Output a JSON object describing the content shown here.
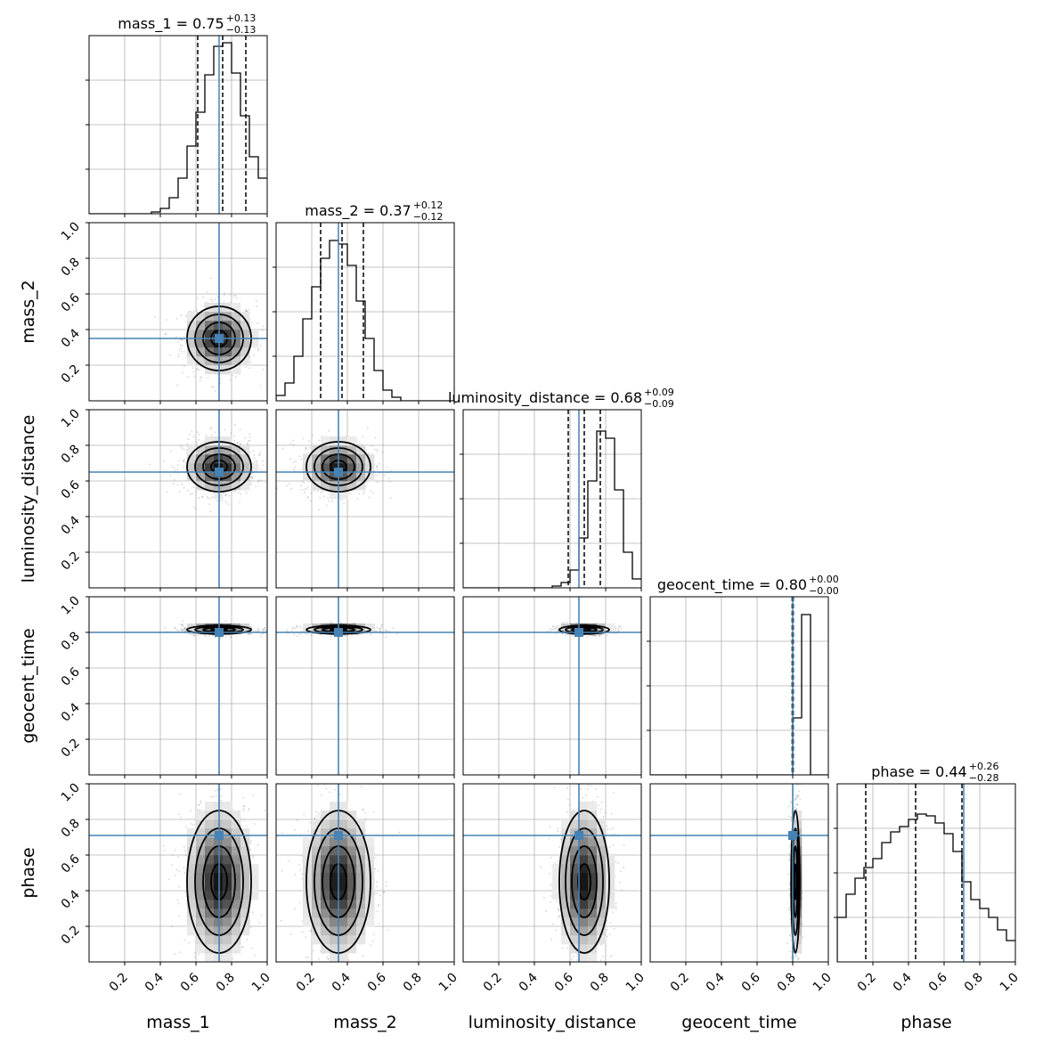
{
  "chart_data": {
    "type": "corner",
    "parameters": [
      "mass_1",
      "mass_2",
      "luminosity_distance",
      "geocent_time",
      "phase"
    ],
    "axis_range": [
      0,
      1
    ],
    "tick_labels": [
      "0.2",
      "0.4",
      "0.6",
      "0.8",
      "1.0"
    ],
    "truth_color": "#4682b4",
    "truths": {
      "mass_1": 0.73,
      "mass_2": 0.35,
      "luminosity_distance": 0.65,
      "geocent_time": 0.8,
      "phase": 0.71
    },
    "marginal_titles": [
      {
        "param": "mass_1",
        "name": "mass_1",
        "median": "0.75",
        "plus": "+0.13",
        "minus": "−0.13"
      },
      {
        "param": "mass_2",
        "name": "mass_2",
        "median": "0.37",
        "plus": "+0.12",
        "minus": "−0.12"
      },
      {
        "param": "luminosity_distance",
        "name": "luminosity_distance",
        "median": "0.68",
        "plus": "+0.09",
        "minus": "−0.09"
      },
      {
        "param": "geocent_time",
        "name": "geocent_time",
        "median": "0.80",
        "plus": "+0.00",
        "minus": "−0.00"
      },
      {
        "param": "phase",
        "name": "phase",
        "median": "0.44",
        "plus": "+0.26",
        "minus": "−0.28"
      }
    ],
    "quantiles": {
      "mass_1": [
        0.61,
        0.75,
        0.88
      ],
      "mass_2": [
        0.25,
        0.37,
        0.49
      ],
      "luminosity_distance": [
        0.59,
        0.68,
        0.77
      ],
      "geocent_time": [
        0.797,
        0.8,
        0.803
      ],
      "phase": [
        0.16,
        0.44,
        0.7
      ]
    },
    "histograms": {
      "bin_edges": [
        0.0,
        0.05,
        0.1,
        0.15,
        0.2,
        0.25,
        0.3,
        0.35,
        0.4,
        0.45,
        0.5,
        0.55,
        0.6,
        0.65,
        0.7,
        0.75,
        0.8,
        0.85,
        0.9,
        0.95,
        1.0
      ],
      "mass_1": [
        0.0,
        0.0,
        0.0,
        0.0,
        0.0,
        0.0,
        0.0,
        0.01,
        0.03,
        0.09,
        0.2,
        0.38,
        0.57,
        0.78,
        0.94,
        0.96,
        0.79,
        0.55,
        0.32,
        0.2
      ],
      "mass_2": [
        0.03,
        0.1,
        0.25,
        0.46,
        0.64,
        0.8,
        0.9,
        0.88,
        0.76,
        0.56,
        0.35,
        0.17,
        0.06,
        0.02,
        0.0,
        0.0,
        0.0,
        0.0,
        0.0,
        0.0
      ],
      "luminosity_distance": [
        0.0,
        0.0,
        0.0,
        0.0,
        0.0,
        0.0,
        0.0,
        0.0,
        0.0,
        0.0,
        0.01,
        0.03,
        0.1,
        0.28,
        0.6,
        0.88,
        0.84,
        0.55,
        0.2,
        0.05
      ],
      "geocent_time": [
        0.0,
        0.0,
        0.0,
        0.0,
        0.0,
        0.0,
        0.0,
        0.0,
        0.0,
        0.0,
        0.0,
        0.0,
        0.0,
        0.0,
        0.0,
        0.0,
        0.32,
        0.9,
        0.0,
        0.0
      ],
      "phase": [
        0.25,
        0.38,
        0.47,
        0.53,
        0.58,
        0.67,
        0.73,
        0.76,
        0.8,
        0.83,
        0.82,
        0.78,
        0.72,
        0.62,
        0.45,
        0.35,
        0.3,
        0.25,
        0.18,
        0.12
      ]
    },
    "posterior_2d": {
      "mass_1": {
        "mean": 0.73,
        "sd": 0.09
      },
      "mass_2": {
        "mean": 0.35,
        "sd": 0.09
      },
      "luminosity_distance": {
        "mean": 0.68,
        "sd": 0.07
      },
      "geocent_time": {
        "mean": 0.815,
        "sd": 0.012
      },
      "phase": {
        "mean": 0.45,
        "sd": 0.2
      }
    },
    "grid": true
  }
}
